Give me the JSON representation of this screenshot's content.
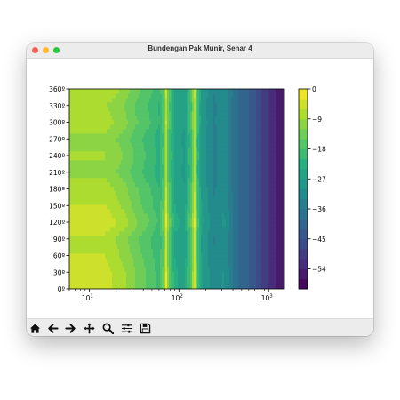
{
  "window": {
    "title": "Bundengan Pak Munir, Senar 4"
  },
  "toolbar": {
    "buttons": [
      {
        "icon": "home-icon",
        "label": "Home"
      },
      {
        "icon": "back-icon",
        "label": "Back"
      },
      {
        "icon": "forward-icon",
        "label": "Forward"
      },
      {
        "icon": "pan-icon",
        "label": "Pan"
      },
      {
        "icon": "zoom-icon",
        "label": "Zoom"
      },
      {
        "icon": "configure-subplots-icon",
        "label": "Configure subplots"
      },
      {
        "icon": "save-icon",
        "label": "Save"
      }
    ]
  },
  "chart_data": {
    "type": "heatmap",
    "x_scale": "log",
    "xlim": [
      6,
      1500
    ],
    "ylim": [
      0,
      360
    ],
    "x_ticks": [
      {
        "value": 10,
        "base": "10",
        "exp": "1"
      },
      {
        "value": 100,
        "base": "10",
        "exp": "2"
      },
      {
        "value": 1000,
        "base": "10",
        "exp": "3"
      }
    ],
    "y_ticks": [
      {
        "value": 0,
        "label": "0º"
      },
      {
        "value": 30,
        "label": "30º"
      },
      {
        "value": 60,
        "label": "60º"
      },
      {
        "value": 90,
        "label": "90º"
      },
      {
        "value": 120,
        "label": "120º"
      },
      {
        "value": 150,
        "label": "150º"
      },
      {
        "value": 180,
        "label": "180º"
      },
      {
        "value": 210,
        "label": "210º"
      },
      {
        "value": 240,
        "label": "240º"
      },
      {
        "value": 270,
        "label": "270º"
      },
      {
        "value": 300,
        "label": "300º"
      },
      {
        "value": 330,
        "label": "330º"
      },
      {
        "value": 360,
        "label": "360º"
      }
    ],
    "colorbar": {
      "min": -60,
      "max": 0,
      "ticks": [
        0,
        -9,
        -18,
        -27,
        -36,
        -45,
        -54
      ],
      "levels": 20,
      "palette": [
        "#440154",
        "#472d7b",
        "#3b528b",
        "#2c728e",
        "#21918c",
        "#28ae80",
        "#5ec962",
        "#addc30",
        "#fde725"
      ]
    },
    "frequency_profile": [
      {
        "f": 6,
        "db": -6
      },
      {
        "f": 15,
        "db": -6
      },
      {
        "f": 25,
        "db": -10
      },
      {
        "f": 35,
        "db": -14
      },
      {
        "f": 48,
        "db": -17
      },
      {
        "f": 60,
        "db": -20
      },
      {
        "f": 68,
        "db": -14
      },
      {
        "f": 72,
        "db": -4
      },
      {
        "f": 76,
        "db": -14
      },
      {
        "f": 90,
        "db": -24
      },
      {
        "f": 115,
        "db": -26
      },
      {
        "f": 140,
        "db": -15
      },
      {
        "f": 148,
        "db": -2
      },
      {
        "f": 156,
        "db": -15
      },
      {
        "f": 180,
        "db": -27
      },
      {
        "f": 250,
        "db": -33
      },
      {
        "f": 320,
        "db": -30
      },
      {
        "f": 420,
        "db": -38
      },
      {
        "f": 600,
        "db": -42
      },
      {
        "f": 800,
        "db": -47
      },
      {
        "f": 1100,
        "db": -53
      },
      {
        "f": 1500,
        "db": -56
      }
    ],
    "angle_profile": [
      {
        "deg": 0,
        "db": 1
      },
      {
        "deg": 30,
        "db": 1
      },
      {
        "deg": 60,
        "db": 0
      },
      {
        "deg": 90,
        "db": -1
      },
      {
        "deg": 120,
        "db": 2
      },
      {
        "deg": 150,
        "db": 0
      },
      {
        "deg": 180,
        "db": -1
      },
      {
        "deg": 210,
        "db": -3
      },
      {
        "deg": 240,
        "db": -2
      },
      {
        "deg": 270,
        "db": -3
      },
      {
        "deg": 300,
        "db": -1
      },
      {
        "deg": 330,
        "db": -2
      },
      {
        "deg": 360,
        "db": 0
      }
    ]
  }
}
